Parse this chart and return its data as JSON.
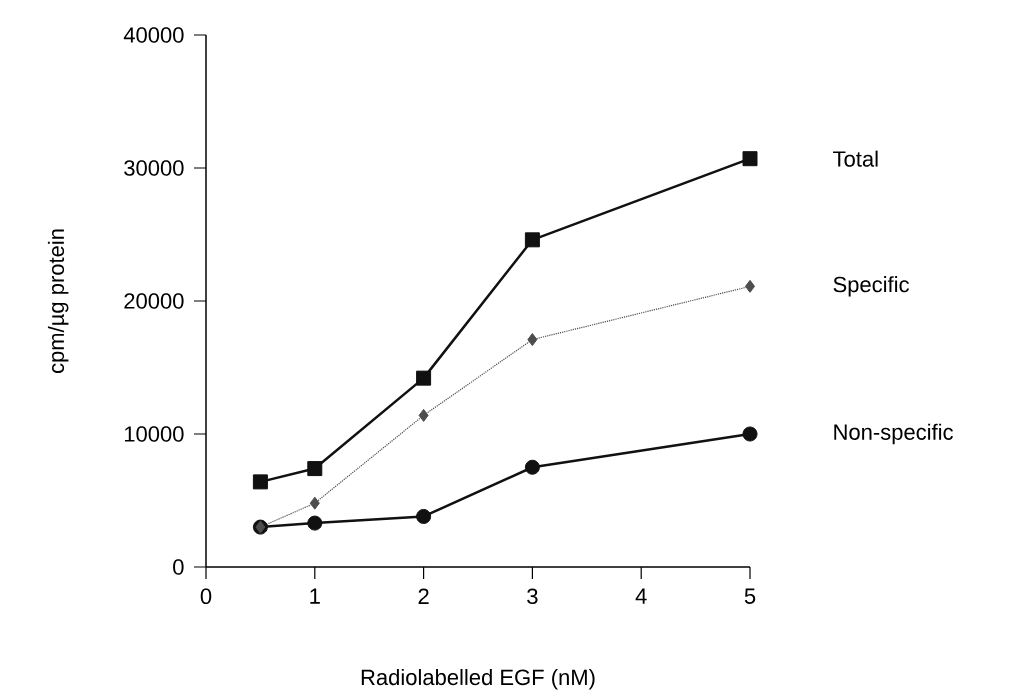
{
  "chart_data": {
    "type": "line",
    "xlabel": "Radiolabelled EGF (nM)",
    "ylabel": "cpm/µg protein",
    "x": [
      0.5,
      1,
      2,
      3,
      5
    ],
    "series": [
      {
        "name": "Total",
        "color": "#111111",
        "marker": "square",
        "line_style": "solid",
        "values": [
          6400,
          7400,
          14200,
          24600,
          30700
        ]
      },
      {
        "name": "Specific",
        "color": "#4d4d4d",
        "marker": "diamond",
        "line_style": "dotted",
        "values": [
          3000,
          4800,
          11400,
          17100,
          21100
        ]
      },
      {
        "name": "Non-specific",
        "color": "#111111",
        "marker": "circle",
        "line_style": "solid",
        "values": [
          3000,
          3300,
          3800,
          7500,
          10000
        ]
      }
    ],
    "xlim": [
      0,
      5
    ],
    "ylim": [
      0,
      40000
    ],
    "xticks": [
      0,
      1,
      2,
      3,
      4,
      5
    ],
    "yticks": [
      0,
      10000,
      20000,
      30000,
      40000
    ],
    "grid": false,
    "legend": false
  }
}
